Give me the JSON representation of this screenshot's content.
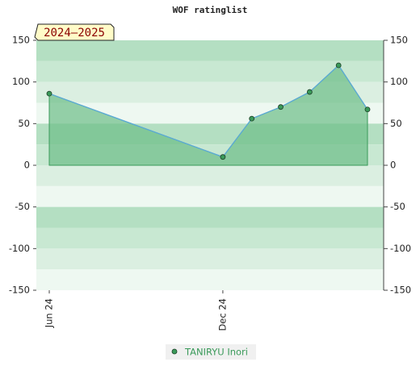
{
  "chart_data": {
    "type": "area-line",
    "title": "WOF ratinglist",
    "badge": "2024–2025",
    "x": [
      "2024-06",
      "2024-12",
      "2025-01",
      "2025-02",
      "2025-03",
      "2025-04",
      "2025-05"
    ],
    "series": [
      {
        "name": "TANIRYU Inori",
        "color": "#3a9a5a",
        "line_color": "#5aa9d6",
        "fill_color": "#6cbd87",
        "values": [
          86,
          10,
          56,
          70,
          88,
          120,
          67
        ]
      }
    ],
    "xticks": [
      {
        "value": "2024-06",
        "label": "Jun 24"
      },
      {
        "value": "2024-12",
        "label": "Dec 24"
      }
    ],
    "ylim": [
      -150,
      150
    ],
    "yticks": [
      -150,
      -100,
      -50,
      0,
      50,
      100,
      150
    ],
    "y2lim": [
      -150,
      150
    ],
    "y2ticks": [
      -150,
      -100,
      -50,
      0,
      50,
      100,
      150
    ]
  }
}
